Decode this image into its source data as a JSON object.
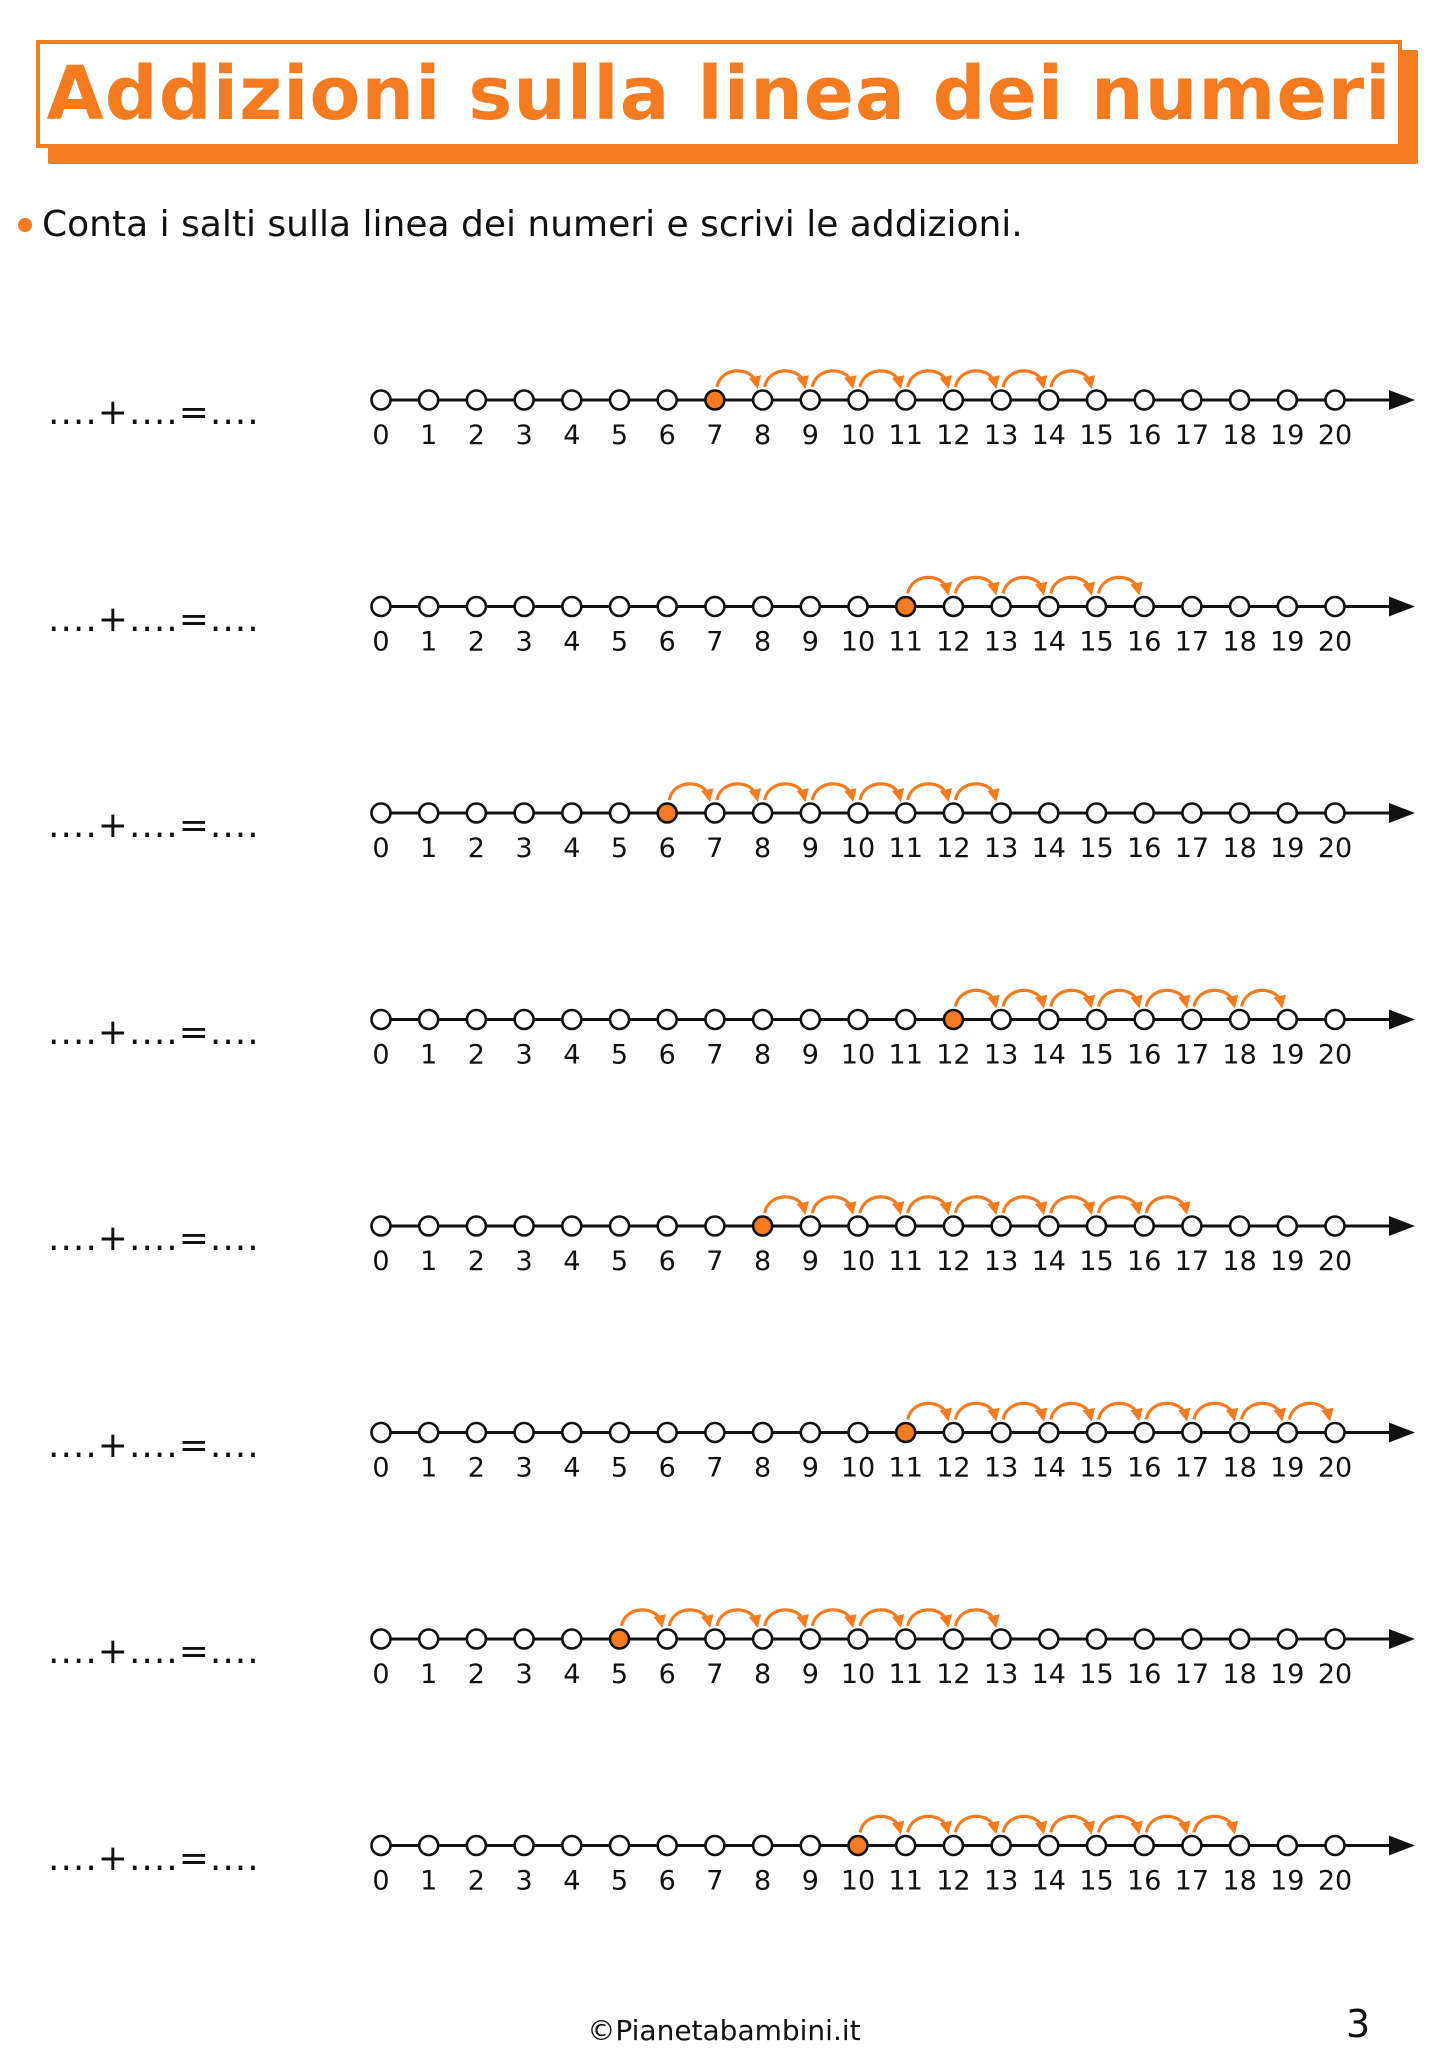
{
  "title": "Addizioni sulla linea dei numeri",
  "instruction": "Conta i salti sulla linea dei numeri e scrivi le addizioni.",
  "equation_template": "....+....=....",
  "number_labels": [
    "0",
    "1",
    "2",
    "3",
    "4",
    "5",
    "6",
    "7",
    "8",
    "9",
    "10",
    "11",
    "12",
    "13",
    "14",
    "15",
    "16",
    "17",
    "18",
    "19",
    "20"
  ],
  "exercises": [
    {
      "start": 7,
      "jumps": 8
    },
    {
      "start": 11,
      "jumps": 5
    },
    {
      "start": 6,
      "jumps": 7
    },
    {
      "start": 12,
      "jumps": 7
    },
    {
      "start": 8,
      "jumps": 9
    },
    {
      "start": 11,
      "jumps": 9
    },
    {
      "start": 5,
      "jumps": 8
    },
    {
      "start": 10,
      "jumps": 8
    }
  ],
  "colors": {
    "accent": "#f47b20",
    "line": "#111111",
    "circle_fill": "#ffffff"
  },
  "footer": "©Pianetabambini.it",
  "page_number": "3"
}
